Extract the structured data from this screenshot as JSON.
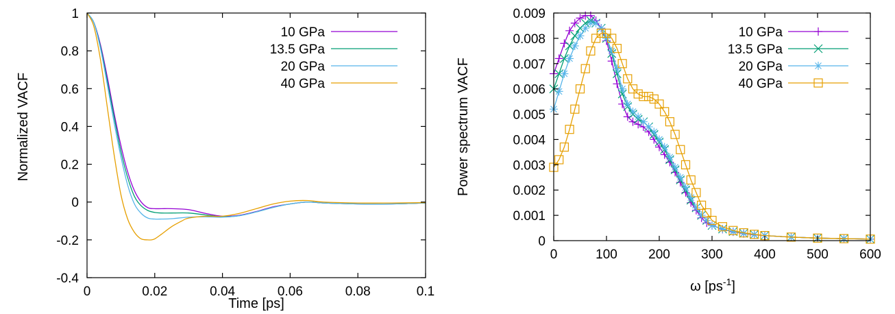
{
  "chart_data": [
    {
      "type": "line",
      "title": "",
      "xlabel": "Time [ps]",
      "ylabel": "Normalized VACF",
      "xlim": [
        0,
        0.1
      ],
      "ylim": [
        -0.4,
        1
      ],
      "xticks": [
        "0",
        "0.02",
        "0.04",
        "0.06",
        "0.08",
        "0.1"
      ],
      "yticks": [
        "-0.4",
        "-0.2",
        "0",
        "0.2",
        "0.4",
        "0.6",
        "0.8",
        "1"
      ],
      "grid": false,
      "legend_position": "top-right",
      "series": [
        {
          "name": "10 GPa",
          "color": "#9400d3",
          "x": [
            0,
            0.002,
            0.004,
            0.006,
            0.008,
            0.01,
            0.012,
            0.014,
            0.016,
            0.018,
            0.02,
            0.022,
            0.025,
            0.03,
            0.035,
            0.04,
            0.045,
            0.05,
            0.055,
            0.06,
            0.065,
            0.07,
            0.08,
            0.09,
            0.1
          ],
          "y": [
            1,
            0.95,
            0.83,
            0.66,
            0.47,
            0.3,
            0.16,
            0.06,
            0.0,
            -0.03,
            -0.035,
            -0.035,
            -0.035,
            -0.04,
            -0.06,
            -0.075,
            -0.07,
            -0.05,
            -0.025,
            -0.01,
            0.0,
            -0.005,
            -0.01,
            -0.01,
            -0.005
          ]
        },
        {
          "name": "13.5 GPa",
          "color": "#009e73",
          "x": [
            0,
            0.002,
            0.004,
            0.006,
            0.008,
            0.01,
            0.012,
            0.014,
            0.016,
            0.018,
            0.02,
            0.022,
            0.025,
            0.03,
            0.035,
            0.04,
            0.045,
            0.05,
            0.055,
            0.06,
            0.065,
            0.07,
            0.08,
            0.09,
            0.1
          ],
          "y": [
            1,
            0.95,
            0.82,
            0.64,
            0.45,
            0.27,
            0.13,
            0.03,
            -0.02,
            -0.045,
            -0.055,
            -0.058,
            -0.058,
            -0.058,
            -0.068,
            -0.078,
            -0.072,
            -0.052,
            -0.028,
            -0.01,
            0.0,
            -0.005,
            -0.01,
            -0.01,
            -0.005
          ]
        },
        {
          "name": "20 GPa",
          "color": "#56b4e9",
          "x": [
            0,
            0.002,
            0.004,
            0.006,
            0.008,
            0.01,
            0.012,
            0.014,
            0.016,
            0.018,
            0.02,
            0.022,
            0.025,
            0.03,
            0.035,
            0.04,
            0.045,
            0.05,
            0.055,
            0.06,
            0.065,
            0.07,
            0.08,
            0.09,
            0.1
          ],
          "y": [
            1,
            0.95,
            0.81,
            0.62,
            0.42,
            0.24,
            0.09,
            -0.01,
            -0.06,
            -0.085,
            -0.09,
            -0.09,
            -0.088,
            -0.08,
            -0.078,
            -0.08,
            -0.072,
            -0.052,
            -0.028,
            -0.01,
            0.0,
            -0.005,
            -0.01,
            -0.01,
            -0.005
          ]
        },
        {
          "name": "40 GPa",
          "color": "#e69f00",
          "x": [
            0,
            0.002,
            0.004,
            0.006,
            0.008,
            0.01,
            0.012,
            0.014,
            0.016,
            0.018,
            0.019,
            0.02,
            0.022,
            0.025,
            0.028,
            0.03,
            0.035,
            0.04,
            0.045,
            0.05,
            0.055,
            0.06,
            0.065,
            0.07,
            0.08,
            0.09,
            0.1
          ],
          "y": [
            1,
            0.93,
            0.75,
            0.5,
            0.25,
            0.04,
            -0.09,
            -0.16,
            -0.195,
            -0.2,
            -0.2,
            -0.195,
            -0.17,
            -0.13,
            -0.1,
            -0.085,
            -0.075,
            -0.075,
            -0.06,
            -0.035,
            -0.01,
            0.005,
            0.008,
            0.0,
            -0.005,
            -0.005,
            -0.003
          ]
        }
      ]
    },
    {
      "type": "line",
      "title": "",
      "xlabel": "ω [ps",
      "xlabel_superscript": "-1",
      "xlabel_suffix": "]",
      "ylabel": "Power spectrum VACF",
      "xlim": [
        0,
        600
      ],
      "ylim": [
        0,
        0.009
      ],
      "xticks": [
        "0",
        "100",
        "200",
        "300",
        "400",
        "500",
        "600"
      ],
      "yticks": [
        "0",
        "0.001",
        "0.002",
        "0.003",
        "0.004",
        "0.005",
        "0.006",
        "0.007",
        "0.008",
        "0.009"
      ],
      "grid": false,
      "legend_position": "top-right",
      "series": [
        {
          "name": "10 GPa",
          "color": "#9400d3",
          "marker": "plus",
          "x": [
            0,
            10,
            20,
            30,
            40,
            50,
            60,
            70,
            80,
            90,
            100,
            110,
            120,
            130,
            140,
            150,
            160,
            170,
            180,
            190,
            200,
            210,
            220,
            230,
            240,
            250,
            260,
            270,
            280,
            290,
            300,
            320,
            340,
            360,
            380,
            400,
            450,
            500,
            550,
            600
          ],
          "y": [
            0.0066,
            0.0072,
            0.0078,
            0.0083,
            0.0086,
            0.0088,
            0.0089,
            0.0089,
            0.0087,
            0.0084,
            0.0079,
            0.0071,
            0.0062,
            0.0054,
            0.0049,
            0.0047,
            0.0046,
            0.0045,
            0.0043,
            0.004,
            0.0037,
            0.0034,
            0.0031,
            0.0027,
            0.0023,
            0.0019,
            0.0015,
            0.0012,
            0.0009,
            0.0007,
            0.0006,
            0.00045,
            0.00035,
            0.00028,
            0.00023,
            0.0002,
            0.00014,
            0.0001,
            8e-05,
            6e-05
          ]
        },
        {
          "name": "13.5 GPa",
          "color": "#009e73",
          "marker": "x",
          "x": [
            0,
            10,
            20,
            30,
            40,
            50,
            60,
            70,
            80,
            90,
            100,
            110,
            120,
            130,
            140,
            150,
            160,
            170,
            180,
            190,
            200,
            210,
            220,
            230,
            240,
            250,
            260,
            270,
            280,
            290,
            300,
            320,
            340,
            360,
            380,
            400,
            450,
            500,
            550,
            600
          ],
          "y": [
            0.006,
            0.0066,
            0.0072,
            0.0077,
            0.0081,
            0.0084,
            0.0086,
            0.0087,
            0.0086,
            0.0084,
            0.008,
            0.0074,
            0.0066,
            0.0058,
            0.0053,
            0.005,
            0.0048,
            0.0047,
            0.0045,
            0.0042,
            0.0039,
            0.0036,
            0.0032,
            0.0028,
            0.0024,
            0.002,
            0.0016,
            0.0013,
            0.001,
            0.0008,
            0.0006,
            0.00046,
            0.00036,
            0.00029,
            0.00024,
            0.0002,
            0.00014,
            0.0001,
            8e-05,
            6e-05
          ]
        },
        {
          "name": "20 GPa",
          "color": "#56b4e9",
          "marker": "star",
          "x": [
            0,
            10,
            20,
            30,
            40,
            50,
            60,
            70,
            80,
            90,
            100,
            110,
            120,
            130,
            140,
            150,
            160,
            170,
            180,
            190,
            200,
            210,
            220,
            230,
            240,
            250,
            260,
            270,
            280,
            290,
            300,
            320,
            340,
            360,
            380,
            400,
            450,
            500,
            550,
            600
          ],
          "y": [
            0.0052,
            0.0059,
            0.0066,
            0.0072,
            0.0077,
            0.0081,
            0.0084,
            0.0086,
            0.0086,
            0.0084,
            0.008,
            0.0075,
            0.0068,
            0.006,
            0.0054,
            0.0051,
            0.0049,
            0.0047,
            0.0045,
            0.0043,
            0.004,
            0.0037,
            0.0033,
            0.0029,
            0.0025,
            0.0021,
            0.0017,
            0.0013,
            0.001,
            0.0008,
            0.0006,
            0.00046,
            0.00036,
            0.00029,
            0.00024,
            0.0002,
            0.00014,
            0.0001,
            8e-05,
            6e-05
          ]
        },
        {
          "name": "40 GPa",
          "color": "#e69f00",
          "marker": "square",
          "x": [
            0,
            10,
            20,
            30,
            40,
            50,
            60,
            70,
            80,
            90,
            100,
            110,
            120,
            130,
            140,
            150,
            160,
            170,
            180,
            190,
            200,
            210,
            220,
            230,
            240,
            250,
            260,
            270,
            280,
            290,
            300,
            320,
            340,
            360,
            380,
            400,
            450,
            500,
            550,
            600
          ],
          "y": [
            0.0029,
            0.0032,
            0.0037,
            0.0044,
            0.0052,
            0.006,
            0.0068,
            0.0075,
            0.008,
            0.0082,
            0.0082,
            0.008,
            0.0076,
            0.007,
            0.0064,
            0.006,
            0.0058,
            0.0057,
            0.0057,
            0.0056,
            0.0054,
            0.0051,
            0.0047,
            0.0042,
            0.0036,
            0.003,
            0.0024,
            0.0019,
            0.0014,
            0.0011,
            0.0008,
            0.00055,
            0.0004,
            0.00031,
            0.00025,
            0.0002,
            0.00014,
            0.0001,
            8e-05,
            6e-05
          ]
        }
      ]
    }
  ]
}
